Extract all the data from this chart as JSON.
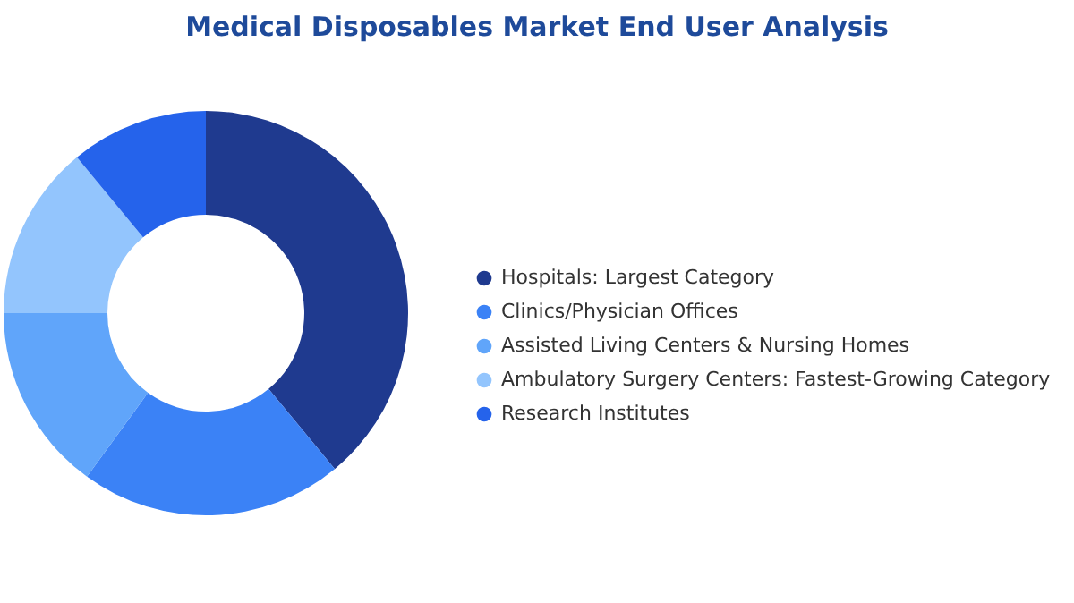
{
  "chart_data": {
    "type": "donut",
    "title": "Medical Disposables Market End User Analysis",
    "categories": [
      "Hospitals:  Largest Category",
      "Clinics/Physician Offices",
      "Assisted Living Centers & Nursing Homes",
      "Ambulatory Surgery Centers:  Fastest-Growing Category",
      "Research Institutes"
    ],
    "values": [
      39,
      21,
      15,
      14,
      11
    ],
    "colors": [
      "#1f3a8f",
      "#3b82f6",
      "#60a5fa",
      "#93c5fd",
      "#2563eb"
    ],
    "legend": "right"
  }
}
